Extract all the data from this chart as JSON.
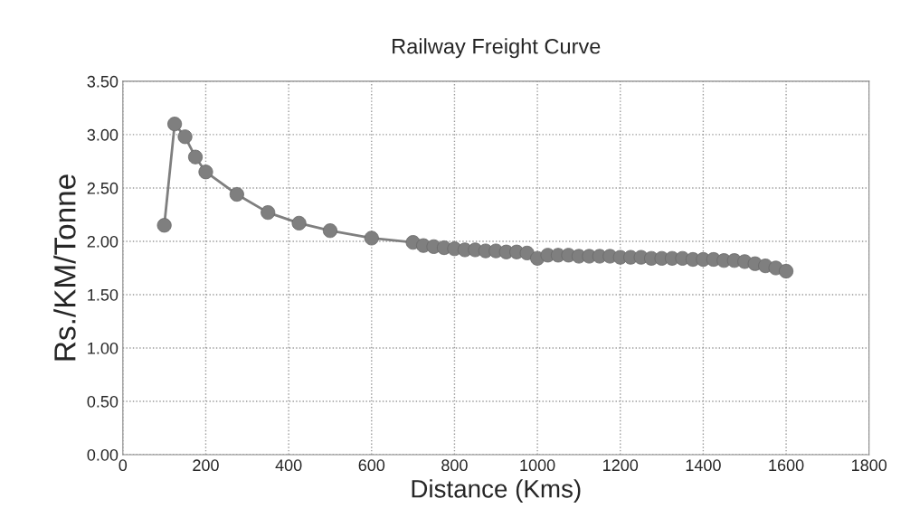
{
  "chart_data": {
    "type": "line",
    "title": "Railway Freight Curve",
    "xlabel": "Distance (Kms)",
    "ylabel": "Rs./KM/Tonne",
    "series": [
      {
        "color": "#7f7f7f",
        "x": [
          100,
          125,
          150,
          175,
          200,
          275,
          350,
          425,
          500,
          600,
          700,
          725,
          750,
          775,
          800,
          825,
          850,
          875,
          900,
          925,
          950,
          975,
          1000,
          1025,
          1050,
          1075,
          1100,
          1125,
          1150,
          1175,
          1200,
          1225,
          1250,
          1275,
          1300,
          1325,
          1350,
          1375,
          1400,
          1425,
          1450,
          1475,
          1500,
          1525,
          1550,
          1575,
          1600
        ],
        "values": [
          2.15,
          3.1,
          2.98,
          2.79,
          2.65,
          2.44,
          2.27,
          2.17,
          2.1,
          2.03,
          1.99,
          1.96,
          1.95,
          1.94,
          1.93,
          1.92,
          1.92,
          1.91,
          1.91,
          1.9,
          1.9,
          1.89,
          1.84,
          1.87,
          1.87,
          1.87,
          1.86,
          1.86,
          1.86,
          1.86,
          1.85,
          1.85,
          1.85,
          1.84,
          1.84,
          1.84,
          1.84,
          1.83,
          1.83,
          1.83,
          1.82,
          1.82,
          1.81,
          1.79,
          1.77,
          1.75,
          1.72
        ]
      }
    ],
    "xlim": [
      0,
      1800
    ],
    "xticks": [
      0,
      200,
      400,
      600,
      800,
      1000,
      1200,
      1400,
      1600,
      1800
    ],
    "ylim": [
      0,
      3.5
    ],
    "yticks": [
      {
        "value": 0,
        "label": "0.00"
      },
      {
        "value": 0.5,
        "label": "0.50"
      },
      {
        "value": 1,
        "label": "1.00"
      },
      {
        "value": 1.5,
        "label": "1.50"
      },
      {
        "value": 2,
        "label": "2.00"
      },
      {
        "value": 2.5,
        "label": "2.50"
      },
      {
        "value": 3,
        "label": "3.00"
      },
      {
        "value": 3.5,
        "label": "3.50"
      }
    ],
    "grid": true,
    "marker": "circle",
    "line_style": "solid",
    "legend": false
  }
}
